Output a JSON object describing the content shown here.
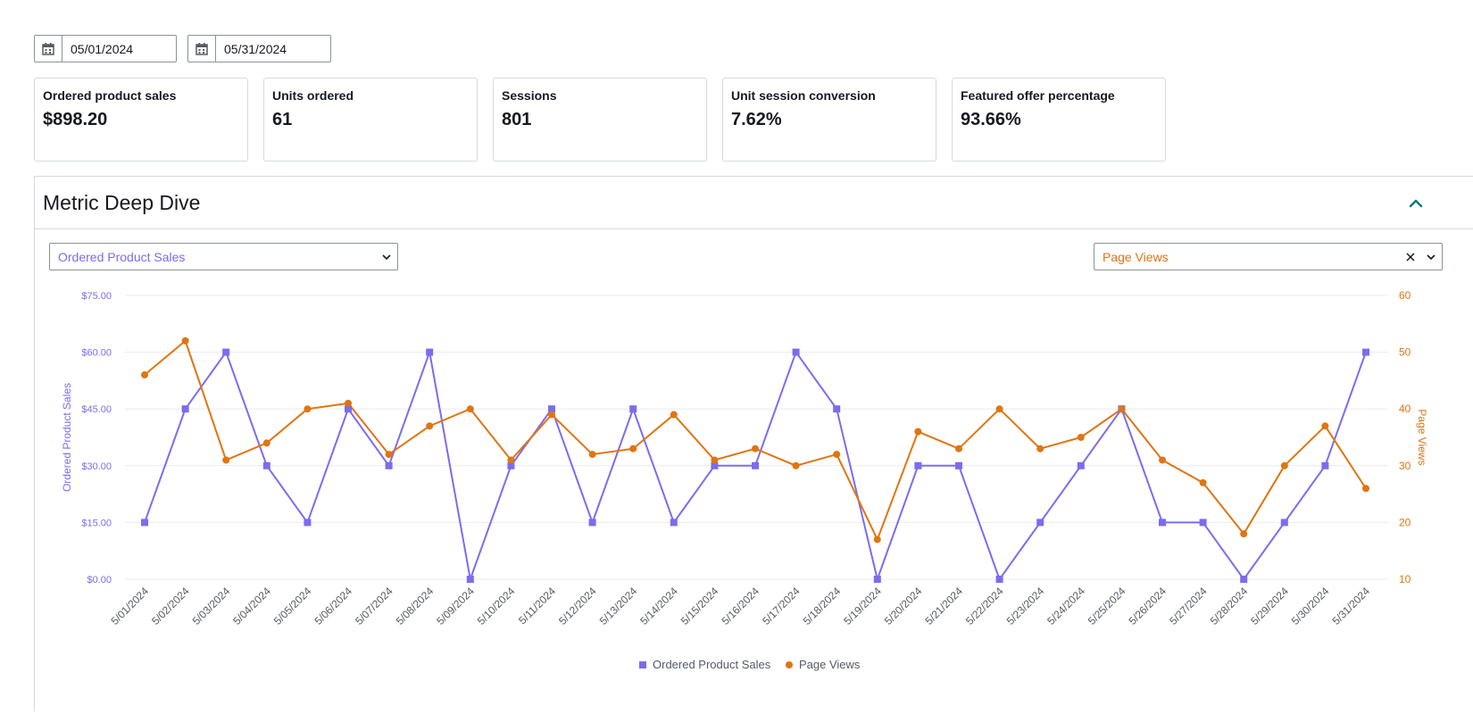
{
  "date_range": {
    "start": "05/01/2024",
    "end": "05/31/2024"
  },
  "cards": [
    {
      "label": "Ordered product sales",
      "value": "$898.20"
    },
    {
      "label": "Units ordered",
      "value": "61"
    },
    {
      "label": "Sessions",
      "value": "801"
    },
    {
      "label": "Unit session conversion",
      "value": "7.62%"
    },
    {
      "label": "Featured offer percentage",
      "value": "93.66%"
    }
  ],
  "panel": {
    "title": "Metric Deep Dive",
    "left_select": "Ordered Product Sales",
    "right_select": "Page Views"
  },
  "colors": {
    "sales": "#7b6cf0",
    "views": "#e07512",
    "grid": "#e9ebed"
  },
  "chart_data": {
    "type": "line",
    "x": [
      "5/01/2024",
      "5/02/2024",
      "5/03/2024",
      "5/04/2024",
      "5/05/2024",
      "5/06/2024",
      "5/07/2024",
      "5/08/2024",
      "5/09/2024",
      "5/10/2024",
      "5/11/2024",
      "5/12/2024",
      "5/13/2024",
      "5/14/2024",
      "5/15/2024",
      "5/16/2024",
      "5/17/2024",
      "5/18/2024",
      "5/19/2024",
      "5/20/2024",
      "5/21/2024",
      "5/22/2024",
      "5/23/2024",
      "5/24/2024",
      "5/25/2024",
      "5/26/2024",
      "5/27/2024",
      "5/28/2024",
      "5/29/2024",
      "5/30/2024",
      "5/31/2024"
    ],
    "series": [
      {
        "name": "Ordered Product Sales",
        "axis": "left",
        "marker": "square",
        "values": [
          15,
          45,
          60,
          30,
          15,
          45,
          30,
          60,
          0,
          30,
          45,
          15,
          45,
          15,
          30,
          30,
          60,
          45,
          0,
          30,
          30,
          0,
          15,
          30,
          45,
          15,
          15,
          0,
          15,
          30,
          60
        ]
      },
      {
        "name": "Page Views",
        "axis": "right",
        "marker": "circle",
        "values": [
          46,
          52,
          31,
          34,
          40,
          41,
          32,
          37,
          40,
          31,
          39,
          32,
          33,
          39,
          31,
          33,
          30,
          32,
          17,
          36,
          33,
          40,
          33,
          35,
          40,
          31,
          27,
          18,
          30,
          37,
          26
        ]
      }
    ],
    "ylabel": "Ordered Product Sales",
    "y2label": "Page Views",
    "ylim": [
      0,
      75
    ],
    "y2lim": [
      10,
      60
    ],
    "yticks": [
      "$0.00",
      "$15.00",
      "$30.00",
      "$45.00",
      "$60.00",
      "$75.00"
    ],
    "y2ticks": [
      "10",
      "20",
      "30",
      "40",
      "50",
      "60"
    ],
    "legend": "bottom-center",
    "grid": true
  }
}
